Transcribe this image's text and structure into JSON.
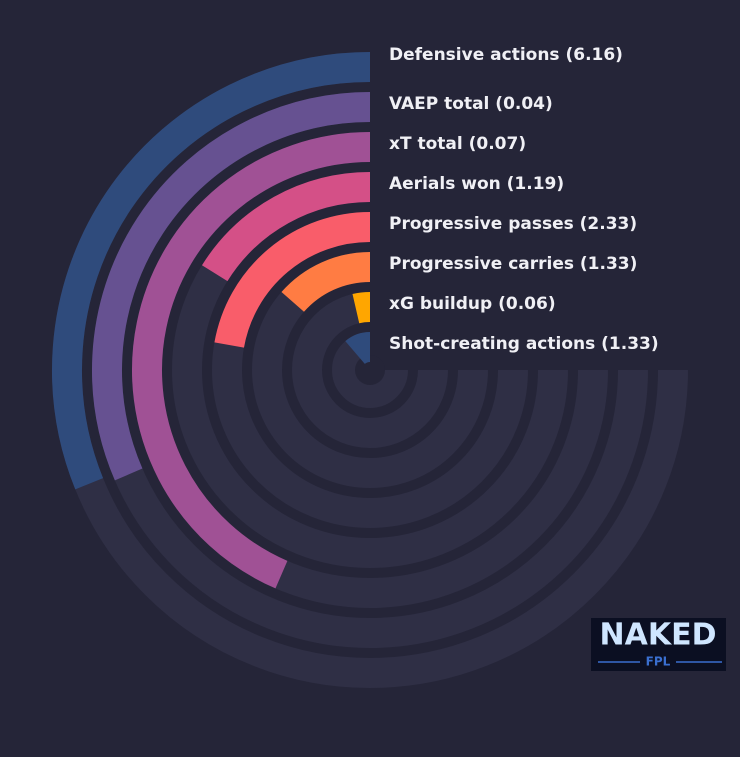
{
  "chart_data": {
    "type": "radial_bar",
    "categories": [
      "Defensive actions (6.16)",
      "VAEP total (0.04)",
      "xT total (0.07)",
      "Aerials won (1.19)",
      "Progressive passes (2.33)",
      "Progressive carries (1.33)",
      "xG buildup (0.06)",
      "Shot-creating actions (1.33)"
    ],
    "values": [
      41.5,
      42,
      58,
      21.5,
      29.6,
      18,
      4.8,
      15
    ],
    "colors": [
      "#2f4b7c",
      "#665191",
      "#a05195",
      "#d45087",
      "#f95d6a",
      "#ff7c43",
      "#ffa600",
      "#2f4b7c"
    ],
    "rlim": [
      0,
      100
    ]
  },
  "logo": {
    "title": "NAKED",
    "subtitle": "FPL"
  }
}
